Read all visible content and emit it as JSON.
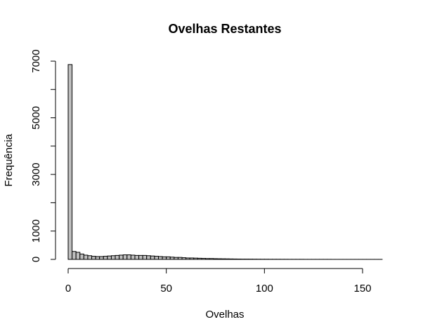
{
  "chart_data": {
    "type": "bar",
    "title": "Ovelhas Restantes",
    "xlabel": "Ovelhas",
    "ylabel": "Frequência",
    "xlim": [
      0,
      160
    ],
    "ylim": [
      0,
      7000
    ],
    "x_ticks": [
      0,
      50,
      100,
      150
    ],
    "y_ticks": [
      0,
      1000,
      3000,
      5000,
      7000
    ],
    "grid": false,
    "bin_width": 2,
    "bin_starts": [
      0,
      2,
      4,
      6,
      8,
      10,
      12,
      14,
      16,
      18,
      20,
      22,
      24,
      26,
      28,
      30,
      32,
      34,
      36,
      38,
      40,
      42,
      44,
      46,
      48,
      50,
      52,
      54,
      56,
      58,
      60,
      62,
      64,
      66,
      68,
      70,
      72,
      74,
      76,
      78,
      80,
      82,
      84,
      86,
      88,
      90,
      92,
      94,
      96,
      98,
      100,
      102,
      104,
      106,
      108,
      110,
      112,
      114,
      116,
      118,
      120,
      122,
      124,
      126,
      128,
      130,
      132,
      134,
      136,
      138,
      140,
      142,
      144,
      146,
      148,
      150,
      152,
      154,
      156,
      158
    ],
    "values": [
      6880,
      280,
      250,
      190,
      150,
      130,
      110,
      100,
      100,
      110,
      120,
      130,
      140,
      150,
      160,
      160,
      150,
      140,
      140,
      140,
      130,
      120,
      110,
      100,
      90,
      90,
      80,
      70,
      70,
      60,
      50,
      50,
      45,
      40,
      35,
      30,
      30,
      25,
      22,
      20,
      18,
      16,
      14,
      12,
      10,
      10,
      9,
      8,
      7,
      6,
      6,
      5,
      5,
      5,
      4,
      4,
      3,
      3,
      3,
      3,
      2,
      2,
      2,
      2,
      2,
      2,
      2,
      1,
      1,
      1,
      1,
      1,
      1,
      1,
      1,
      1,
      1,
      1,
      1,
      1
    ]
  }
}
